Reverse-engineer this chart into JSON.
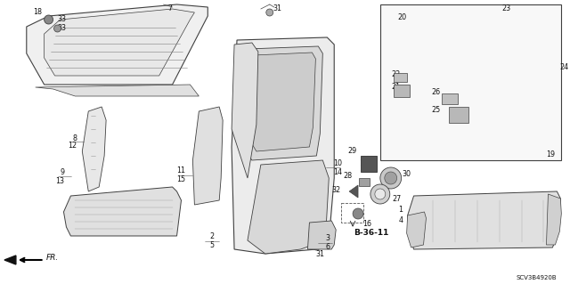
{
  "bg_color": "#ffffff",
  "diagram_code": "SCV3B4920B",
  "line_color": "#404040",
  "label_color": "#111111",
  "label_fontsize": 5.8,
  "small_fontsize": 5.0,
  "bold_fontsize": 6.5
}
